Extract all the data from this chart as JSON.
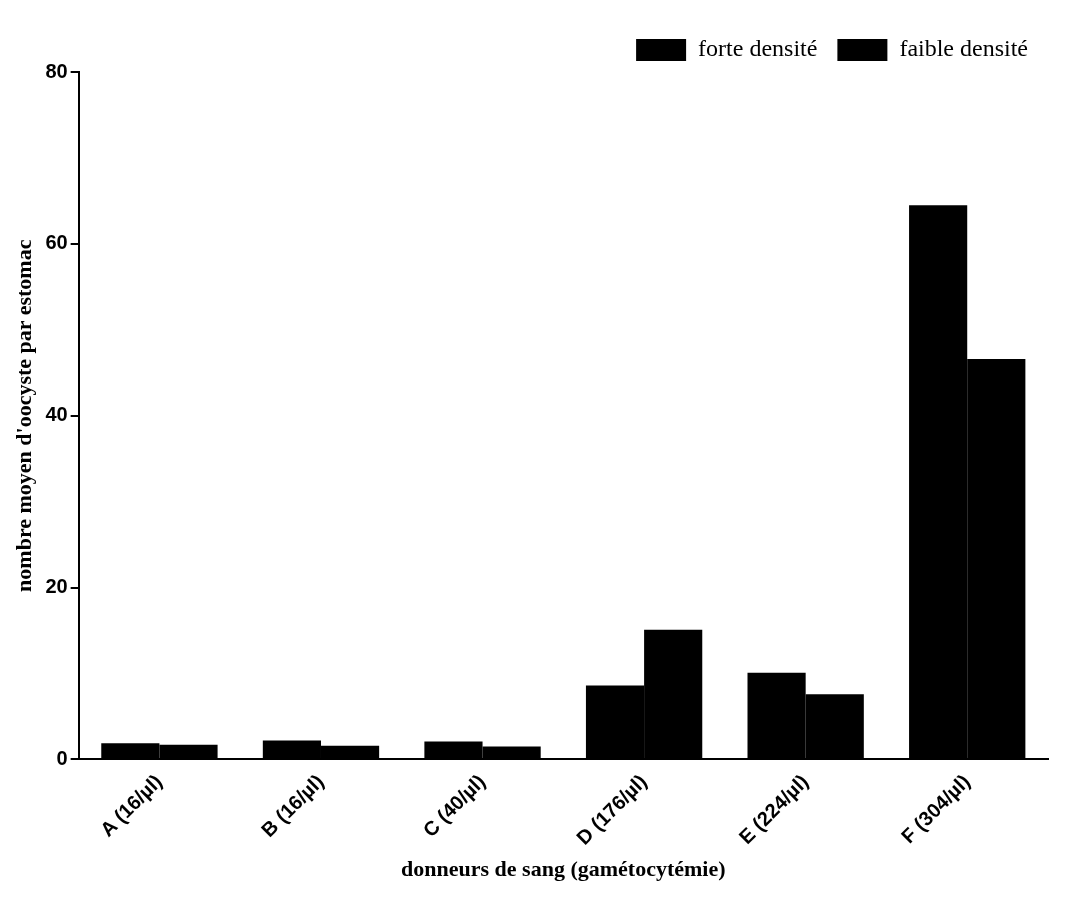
{
  "chart_data": {
    "type": "bar",
    "xlabel": "donneurs de sang (gamétocytémie)",
    "ylabel": "nombre moyen d'oocyste par estomac",
    "categories": [
      "A (16/µl)",
      "B (16/µl)",
      "C (40/µl)",
      "D (176/µl)",
      "E (224/µl)",
      "F (304/µl)"
    ],
    "series": [
      {
        "name": "forte densité",
        "color": "#000000",
        "values": [
          1.9,
          2.2,
          2.1,
          8.6,
          10.1,
          64.5
        ]
      },
      {
        "name": "faible densité",
        "color": "#000000",
        "values": [
          1.7,
          1.6,
          1.5,
          15.1,
          7.6,
          46.6
        ]
      }
    ],
    "ylim": [
      0,
      80
    ],
    "yticks": [
      0,
      20,
      40,
      60,
      80
    ],
    "grid": false,
    "legend": "top right"
  }
}
